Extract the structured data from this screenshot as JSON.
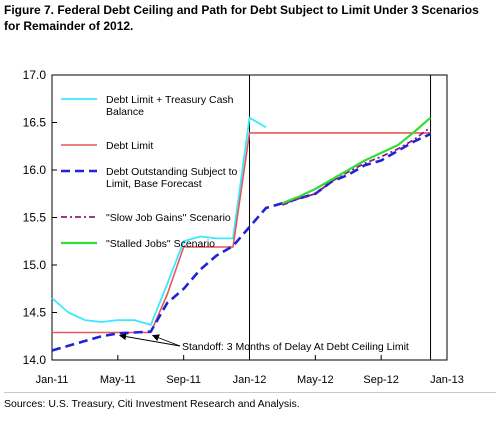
{
  "title": "Figure 7. Federal Debt Ceiling and Path for Debt Subject to Limit Under 3 Scenarios for Remainder of 2012.",
  "source": "Sources: U.S. Treasury, Citi Investment Research and Analysis.",
  "colors": {
    "cash_balance": "#3ae8ff",
    "debt_limit": "#e8575a",
    "base_forecast": "#1f24d6",
    "slow_job": "#8b1a8b",
    "stalled_jobs": "#33dd33",
    "axis": "#000000",
    "vline": "#000000"
  },
  "chart_data": {
    "type": "line",
    "title": "",
    "xlabel": "",
    "ylabel": "",
    "xlim": [
      "2011-01",
      "2013-01"
    ],
    "ylim": [
      14.0,
      17.0
    ],
    "y_ticks": [
      "14.0",
      "14.5",
      "15.0",
      "15.5",
      "16.0",
      "16.5",
      "17.0"
    ],
    "y_tick_values": [
      14.0,
      14.5,
      15.0,
      15.5,
      16.0,
      16.5,
      17.0
    ],
    "x_ticks": [
      "Jan-11",
      "May-11",
      "Sep-11",
      "Jan-12",
      "May-12",
      "Sep-12",
      "Jan-13"
    ],
    "x_tick_values": [
      "2011-01",
      "2011-05",
      "2011-09",
      "2012-01",
      "2012-05",
      "2012-09",
      "2013-01"
    ],
    "grid": false,
    "legend_position": "top-left",
    "vertical_lines": [
      "2012-01",
      "2012-12"
    ],
    "series": [
      {
        "name": "Debt Limit + Treasury Cash Balance",
        "key": "cash_balance",
        "style": "solid",
        "x": [
          "2011-01",
          "2011-02",
          "2011-03",
          "2011-04",
          "2011-05",
          "2011-06",
          "2011-07",
          "2011-08",
          "2011-09",
          "2011-10",
          "2011-11",
          "2011-12",
          "2012-01",
          "2012-02"
        ],
        "y": [
          14.65,
          14.5,
          14.42,
          14.4,
          14.42,
          14.42,
          14.37,
          14.8,
          15.25,
          15.3,
          15.28,
          15.28,
          16.55,
          16.45
        ]
      },
      {
        "name": "Debt Limit",
        "key": "debt_limit",
        "style": "solid",
        "x": [
          "2011-01",
          "2011-02",
          "2011-03",
          "2011-04",
          "2011-05",
          "2011-06",
          "2011-07",
          "2011-08",
          "2011-09",
          "2011-10",
          "2011-11",
          "2011-12",
          "2011-12",
          "2012-01",
          "2012-02",
          "2012-03",
          "2012-04",
          "2012-05",
          "2012-06",
          "2012-07",
          "2012-08",
          "2012-09",
          "2012-10",
          "2012-11",
          "2012-12"
        ],
        "y": [
          14.29,
          14.29,
          14.29,
          14.29,
          14.29,
          14.29,
          14.29,
          14.69,
          15.19,
          15.19,
          15.19,
          15.19,
          15.19,
          16.39,
          16.39,
          16.39,
          16.39,
          16.39,
          16.39,
          16.39,
          16.39,
          16.39,
          16.39,
          16.39,
          16.39
        ]
      },
      {
        "name": "Debt Outstanding Subject to Limit, Base Forecast",
        "key": "base_forecast",
        "style": "dashed",
        "x": [
          "2011-01",
          "2011-02",
          "2011-03",
          "2011-04",
          "2011-05",
          "2011-06",
          "2011-07",
          "2011-08",
          "2011-09",
          "2011-10",
          "2011-11",
          "2011-12",
          "2012-01",
          "2012-02",
          "2012-03",
          "2012-04",
          "2012-05",
          "2012-06",
          "2012-07",
          "2012-08",
          "2012-09",
          "2012-10",
          "2012-11",
          "2012-12"
        ],
        "y": [
          14.1,
          14.15,
          14.2,
          14.25,
          14.28,
          14.29,
          14.3,
          14.6,
          14.75,
          14.95,
          15.1,
          15.2,
          15.4,
          15.6,
          15.65,
          15.7,
          15.75,
          15.88,
          15.95,
          16.05,
          16.1,
          16.2,
          16.3,
          16.38
        ]
      },
      {
        "name": "\"Slow Job Gains\" Scenario",
        "key": "slow_job",
        "style": "dashdot",
        "x": [
          "2012-03",
          "2012-04",
          "2012-05",
          "2012-06",
          "2012-07",
          "2012-08",
          "2012-09",
          "2012-10",
          "2012-11",
          "2012-12"
        ],
        "y": [
          15.63,
          15.7,
          15.75,
          15.88,
          15.98,
          16.07,
          16.14,
          16.22,
          16.32,
          16.45
        ]
      },
      {
        "name": "\"Stalled Jobs\" Scenario",
        "key": "stalled_jobs",
        "style": "solid",
        "x": [
          "2012-03",
          "2012-04",
          "2012-05",
          "2012-06",
          "2012-07",
          "2012-08",
          "2012-09",
          "2012-10",
          "2012-11",
          "2012-12"
        ],
        "y": [
          15.65,
          15.72,
          15.8,
          15.9,
          16.0,
          16.1,
          16.18,
          16.26,
          16.4,
          16.55
        ]
      }
    ],
    "legend": [
      {
        "key": "cash_balance",
        "lines": [
          "Debt Limit + Treasury Cash",
          "Balance"
        ]
      },
      {
        "key": "debt_limit",
        "lines": [
          "Debt Limit"
        ]
      },
      {
        "key": "base_forecast",
        "lines": [
          "Debt Outstanding Subject to",
          "Limit, Base Forecast"
        ]
      },
      {
        "key": "slow_job",
        "lines": [
          "\"Slow Job Gains\" Scenario"
        ]
      },
      {
        "key": "stalled_jobs",
        "lines": [
          "\"Stalled Jobs\" Scenario"
        ]
      }
    ],
    "annotations": [
      {
        "text": "Standoff: 3 Months of Delay At Debt Ceiling Limit",
        "arrow_targets": [
          {
            "x": "2011-05",
            "y": 14.3
          },
          {
            "x": "2011-07",
            "y": 14.3
          }
        ]
      }
    ]
  }
}
